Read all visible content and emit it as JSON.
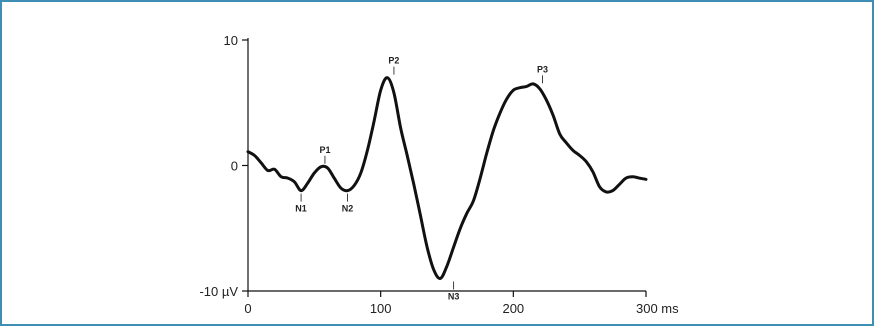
{
  "colors": {
    "frame_border": "#3f8fb5",
    "trace": "#111111",
    "axis": "#111111"
  },
  "chart_data": {
    "type": "line",
    "title": "",
    "xlabel": "",
    "ylabel": "",
    "xlim": [
      0,
      300
    ],
    "ylim": [
      -10,
      10
    ],
    "grid": false,
    "x_ticks": [
      {
        "value": 0,
        "label": "0"
      },
      {
        "value": 100,
        "label": "100"
      },
      {
        "value": 200,
        "label": "200"
      },
      {
        "value": 300,
        "label": "300 ms"
      }
    ],
    "y_ticks": [
      {
        "value": 10,
        "label": "10"
      },
      {
        "value": 0,
        "label": "0"
      },
      {
        "value": -10,
        "label": "-10 µV"
      }
    ],
    "series": [
      {
        "x": [
          0,
          5,
          10,
          15,
          20,
          25,
          30,
          35,
          40,
          45,
          50,
          55,
          60,
          65,
          70,
          75,
          80,
          85,
          90,
          95,
          100,
          105,
          110,
          115,
          120,
          125,
          130,
          135,
          140,
          145,
          150,
          155,
          160,
          165,
          170,
          175,
          180,
          185,
          190,
          195,
          200,
          205,
          210,
          215,
          220,
          225,
          230,
          235,
          240,
          245,
          250,
          255,
          260,
          265,
          270,
          275,
          280,
          285,
          290,
          295,
          300
        ],
        "y": [
          1.1,
          0.8,
          0.2,
          -0.4,
          -0.3,
          -0.9,
          -1.0,
          -1.3,
          -2.0,
          -1.4,
          -0.6,
          -0.1,
          -0.2,
          -1.0,
          -1.8,
          -2.0,
          -1.6,
          -0.6,
          1.2,
          3.5,
          6.0,
          7.0,
          5.8,
          3.0,
          0.8,
          -1.5,
          -4.0,
          -6.5,
          -8.3,
          -9.0,
          -8.0,
          -6.5,
          -5.0,
          -3.8,
          -2.8,
          -1.0,
          1.0,
          2.8,
          4.2,
          5.3,
          6.0,
          6.2,
          6.3,
          6.5,
          6.1,
          5.2,
          4.0,
          2.5,
          1.8,
          1.2,
          0.8,
          0.3,
          -0.5,
          -1.7,
          -2.1,
          -2.0,
          -1.5,
          -1.0,
          -0.9,
          -1.0,
          -1.1
        ]
      }
    ],
    "annotations": [
      {
        "label": "N1",
        "x": 40,
        "y": -2.0,
        "position": "below"
      },
      {
        "label": "P1",
        "x": 58,
        "y": -0.1,
        "position": "above"
      },
      {
        "label": "N2",
        "x": 75,
        "y": -2.0,
        "position": "below"
      },
      {
        "label": "P2",
        "x": 110,
        "y": 7.0,
        "position": "above"
      },
      {
        "label": "N3",
        "x": 155,
        "y": -9.0,
        "position": "below"
      },
      {
        "label": "P3",
        "x": 222,
        "y": 6.3,
        "position": "above"
      }
    ]
  }
}
